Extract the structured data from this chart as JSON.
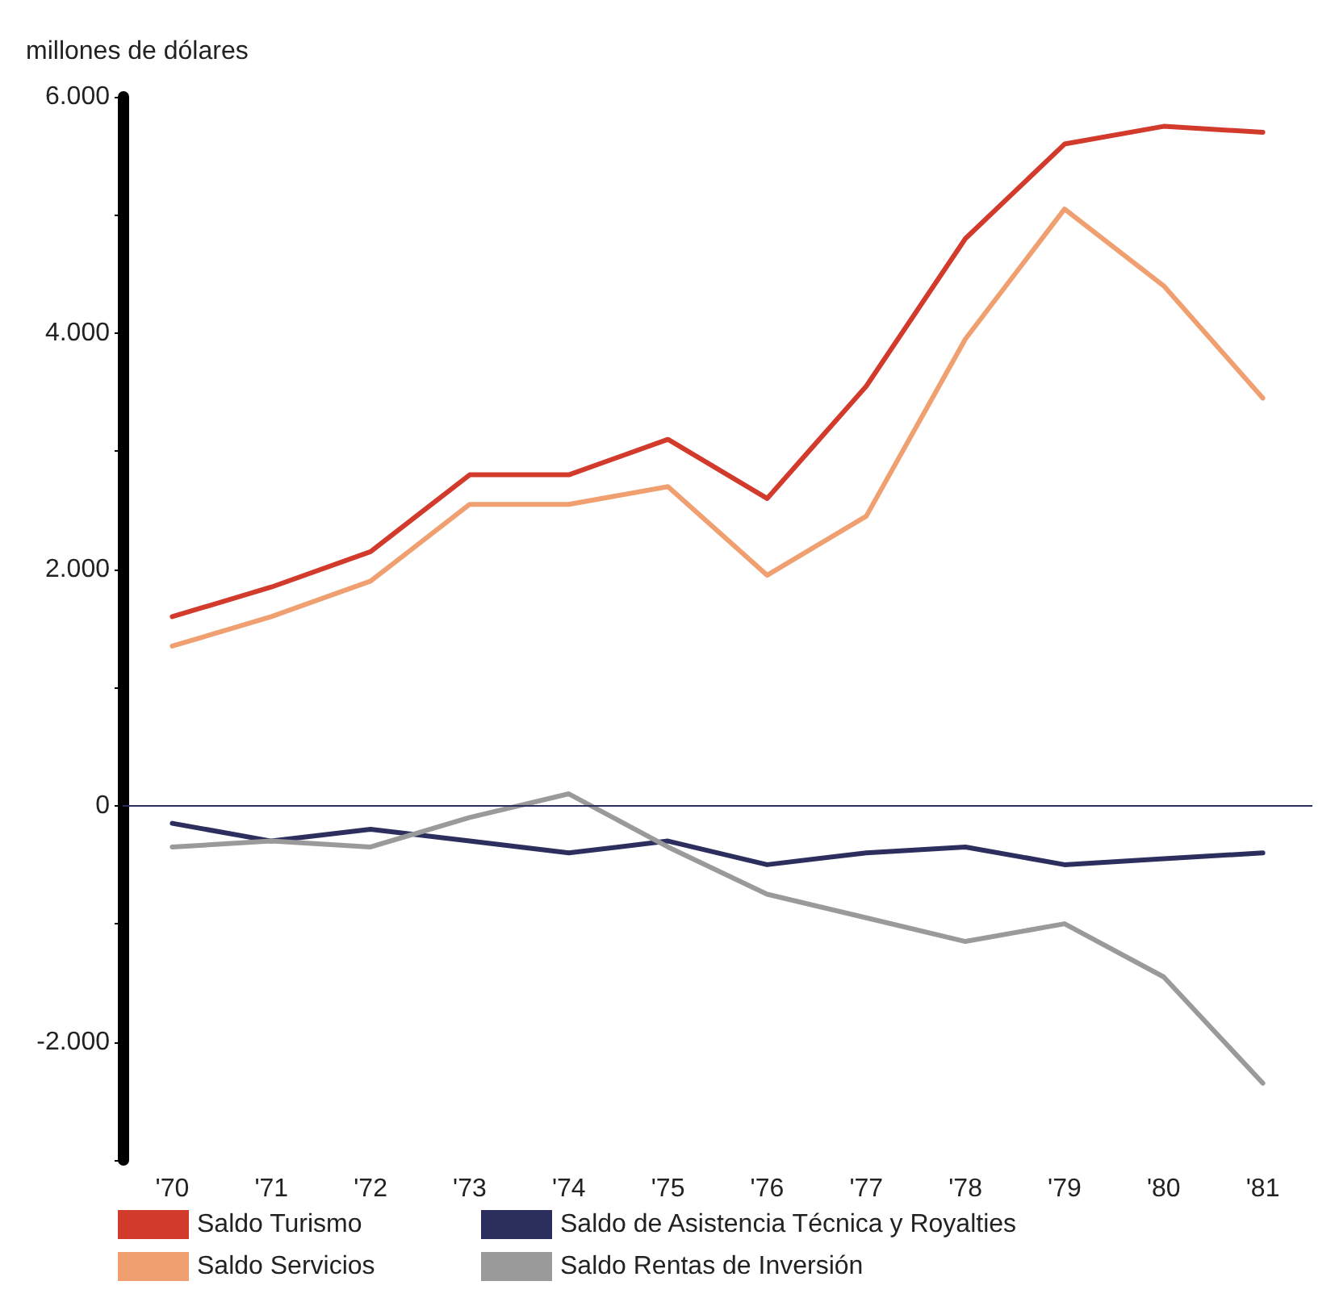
{
  "chart_data": {
    "type": "line",
    "ylabel": "millones de dólares",
    "categories": [
      "'70",
      "'71",
      "'72",
      "'73",
      "'74",
      "'75",
      "'76",
      "'77",
      "'78",
      "'79",
      "'80",
      "'81"
    ],
    "series": [
      {
        "name": "Saldo Turismo",
        "color": "#d23a2c",
        "values": [
          1600,
          1850,
          2150,
          2800,
          2800,
          3100,
          2600,
          3550,
          4800,
          5600,
          5750,
          5700
        ]
      },
      {
        "name": "Saldo Servicios",
        "color": "#f0a070",
        "values": [
          1350,
          1600,
          1900,
          2550,
          2550,
          2700,
          1950,
          2450,
          3950,
          5050,
          4400,
          3450
        ]
      },
      {
        "name": "Saldo de Asistencia Técnica y Royalties",
        "color": "#2c2f5e",
        "values": [
          -150,
          -300,
          -200,
          -300,
          -400,
          -300,
          -500,
          -400,
          -350,
          -500,
          -450,
          -400
        ]
      },
      {
        "name": "Saldo Rentas de Inversión",
        "color": "#9a9a9a",
        "values": [
          -350,
          -300,
          -350,
          -100,
          100,
          -350,
          -750,
          -950,
          -1150,
          -1000,
          -1450,
          -2350
        ]
      }
    ],
    "ylim": [
      -3000,
      6000
    ],
    "yticks": [
      {
        "value": -3000,
        "label": null
      },
      {
        "value": -2000,
        "label": "-2.000"
      },
      {
        "value": -1000,
        "label": null
      },
      0,
      {
        "value": 1000,
        "label": null
      },
      {
        "value": 2000,
        "label": "2.000"
      },
      {
        "value": 3000,
        "label": null
      },
      {
        "value": 4000,
        "label": "4.000"
      },
      {
        "value": 5000,
        "label": null
      },
      {
        "value": 6000,
        "label": "6.000"
      }
    ],
    "ref_lines": [
      {
        "axis": "y",
        "value": 0,
        "color": "#2c2f5e"
      }
    ],
    "grid": false,
    "legend": "bottom",
    "marker": "none",
    "line_style": "solid"
  }
}
